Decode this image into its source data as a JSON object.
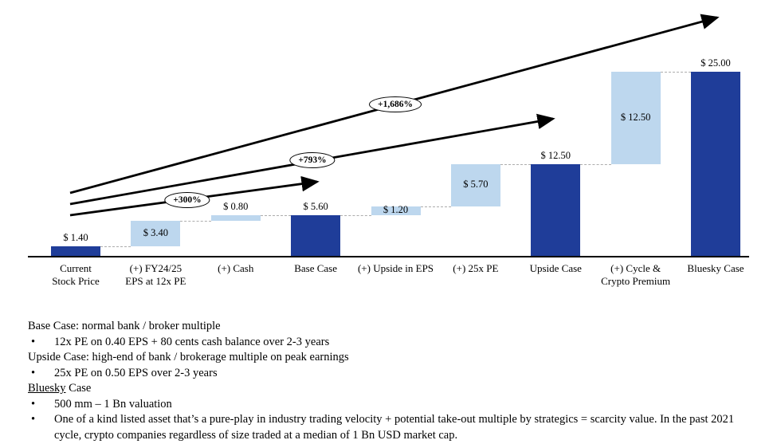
{
  "chart_data": {
    "type": "bar",
    "subtype": "waterfall",
    "title": "",
    "xlabel": "",
    "ylabel": "",
    "ylim": [
      0,
      25
    ],
    "grid": false,
    "legend": "none",
    "colors": {
      "total_bar": "#1F3D99",
      "delta_bar": "#BDD7EE",
      "connector": "#ADADAD",
      "arrow": "#000000"
    },
    "items": [
      {
        "category": "Current\nStock Price",
        "label": "$ 1.40",
        "value": 1.4,
        "kind": "total",
        "label_pos": "above"
      },
      {
        "category": "(+) FY24/25\nEPS at 12x PE",
        "label": "$ 3.40",
        "value": 3.4,
        "kind": "delta",
        "label_pos": "inside"
      },
      {
        "category": "(+) Cash",
        "label": "$ 0.80",
        "value": 0.8,
        "kind": "delta",
        "label_pos": "above"
      },
      {
        "category": "Base Case",
        "label": "$ 5.60",
        "value": 5.6,
        "kind": "total",
        "label_pos": "above"
      },
      {
        "category": "(+) Upside in EPS",
        "label": "$ 1.20",
        "value": 1.2,
        "kind": "delta",
        "label_pos": "inside"
      },
      {
        "category": "(+) 25x PE",
        "label": "$ 5.70",
        "value": 5.7,
        "kind": "delta",
        "label_pos": "inside"
      },
      {
        "category": "Upside Case",
        "label": "$ 12.50",
        "value": 12.5,
        "kind": "total",
        "label_pos": "above"
      },
      {
        "category": "(+) Cycle &\nCrypto Premium",
        "label": "$ 12.50",
        "value": 12.5,
        "kind": "delta",
        "label_pos": "inside"
      },
      {
        "category": "Bluesky  Case",
        "label": "$ 25.00",
        "value": 25.0,
        "kind": "total",
        "label_pos": "above"
      }
    ],
    "arrows": [
      {
        "label": "+300%",
        "from": [
          88,
          270
        ],
        "to": [
          398,
          228
        ],
        "label_at": [
          235,
          251
        ]
      },
      {
        "label": "+793%",
        "from": [
          88,
          256
        ],
        "to": [
          694,
          149
        ],
        "label_at": [
          392,
          201
        ]
      },
      {
        "label": "+1,686%",
        "from": [
          88,
          242
        ],
        "to": [
          900,
          22
        ],
        "label_at": [
          496,
          131
        ]
      }
    ]
  },
  "notes": {
    "lines": [
      {
        "type": "heading",
        "text": "Base Case: normal bank / broker multiple"
      },
      {
        "type": "bullet",
        "text": "12x PE on 0.40 EPS + 80 cents cash balance over 2-3 years"
      },
      {
        "type": "heading",
        "text": "Upside Case: high-end of bank / brokerage multiple on peak earnings"
      },
      {
        "type": "bullet",
        "text": "25x PE on 0.50 EPS over 2-3 years"
      },
      {
        "type": "heading",
        "text": "Bluesky Case",
        "underline_word": "Bluesky"
      },
      {
        "type": "bullet",
        "text": "500 mm – 1 Bn valuation"
      },
      {
        "type": "bullet",
        "text": "One of a kind listed asset that’s a pure-play in industry trading velocity + potential take-out multiple by strategics = scarcity value. In the past 2021 cycle, crypto companies regardless of size traded at a median of 1 Bn USD market cap."
      }
    ],
    "bullet_glyph": "•"
  }
}
